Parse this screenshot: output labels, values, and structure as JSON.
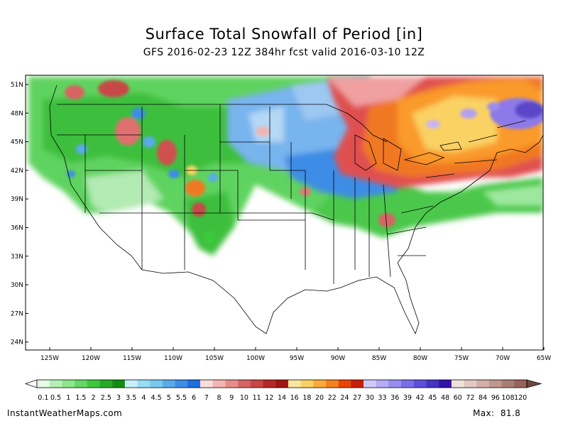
{
  "title": "Surface Total Snowfall of Period [in]",
  "subtitle": "GFS 2016-02-23 12Z 384hr fcst valid 2016-03-10 12Z",
  "source": "InstantWeatherMaps.com",
  "max_label": "Max:",
  "max_value": "81.8",
  "lat_labels": [
    "51N",
    "48N",
    "45N",
    "42N",
    "39N",
    "36N",
    "33N",
    "30N",
    "27N",
    "24N"
  ],
  "lon_labels": [
    "125W",
    "120W",
    "115W",
    "110W",
    "105W",
    "100W",
    "95W",
    "90W",
    "85W",
    "80W",
    "75W",
    "70W",
    "65W"
  ],
  "colorbar": {
    "labels": [
      "0.1",
      "0.5",
      "1",
      "1.5",
      "2",
      "2.5",
      "3",
      "3.5",
      "4",
      "4.5",
      "5",
      "5.5",
      "6",
      "7",
      "8",
      "9",
      "10",
      "11",
      "12",
      "14",
      "16",
      "18",
      "20",
      "22",
      "24",
      "27",
      "30",
      "33",
      "36",
      "39",
      "42",
      "45",
      "48",
      "60",
      "72",
      "84",
      "96",
      "108",
      "120"
    ],
    "colors": [
      "#e6fbe6",
      "#b4f0b4",
      "#8ce68c",
      "#64d764",
      "#3cc83c",
      "#28aa28",
      "#148c14",
      "#c8f0fa",
      "#96dcf5",
      "#78c8f0",
      "#5aaaeb",
      "#3c8ce6",
      "#1e6ede",
      "#fadcdc",
      "#f5b4b4",
      "#e68c8c",
      "#d76464",
      "#c84646",
      "#b42828",
      "#a01414",
      "#fae6a0",
      "#fad264",
      "#faaa3c",
      "#f5821e",
      "#e6460a",
      "#c81e0a",
      "#d2c8fa",
      "#b4aaf5",
      "#968cf0",
      "#786ee6",
      "#5a50d7",
      "#4632c3",
      "#3214a5",
      "#f0e1dc",
      "#e1c8c3",
      "#d2afaa",
      "#be968c",
      "#aa7d73",
      "#96645a"
    ]
  }
}
